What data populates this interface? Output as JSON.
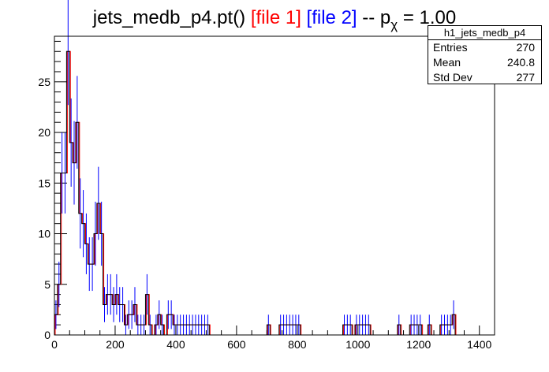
{
  "title": {
    "prefix": "jets_medb_p4.pt() ",
    "file1": "[file 1]",
    "file2": "[file 2]",
    "mid": " -- p",
    "sub": "χ",
    "suffix": " = 1.00"
  },
  "colors": {
    "file1": "#ff0000",
    "file2": "#0000ff",
    "hist": "#000000"
  },
  "stats": {
    "name": "h1_jets_medb_p4",
    "rows": [
      {
        "label": "Entries",
        "value": "270"
      },
      {
        "label": "Mean",
        "value": "240.8"
      },
      {
        "label": "Std Dev",
        "value": "277"
      }
    ]
  },
  "chart_data": {
    "type": "histogram",
    "xlim": [
      0,
      1450
    ],
    "ylim": [
      0,
      29.5
    ],
    "bin_width": 10,
    "x_ticks": [
      0,
      200,
      400,
      600,
      800,
      1000,
      1200,
      1400
    ],
    "y_ticks": [
      0,
      5,
      10,
      15,
      20,
      25
    ],
    "x_tick_labels": [
      "0",
      "200",
      "400",
      "600",
      "800",
      "1000",
      "1200",
      "1400"
    ],
    "y_tick_labels": [
      "0",
      "5",
      "10",
      "15",
      "20",
      "25"
    ],
    "series": [
      {
        "name": "file 1",
        "color": "#ff0000",
        "values": [
          2,
          5,
          16,
          16,
          28,
          19,
          17,
          21,
          12,
          11,
          9,
          7,
          7,
          10,
          13,
          10,
          3,
          4,
          4,
          3,
          4,
          3,
          3,
          1,
          2,
          2,
          3,
          1,
          1,
          1,
          4,
          1,
          0,
          1,
          2,
          1,
          0,
          2,
          2,
          1,
          1,
          1,
          1,
          1,
          1,
          1,
          1,
          1,
          1,
          1,
          1,
          0,
          0,
          0,
          0,
          0,
          0,
          0,
          0,
          0,
          0,
          0,
          0,
          0,
          0,
          0,
          0,
          0,
          0,
          0,
          1,
          0,
          0,
          0,
          1,
          1,
          1,
          1,
          1,
          1,
          1,
          0,
          0,
          0,
          0,
          0,
          0,
          0,
          0,
          0,
          0,
          0,
          0,
          0,
          0,
          1,
          1,
          1,
          0,
          1,
          1,
          1,
          1,
          1,
          0,
          0,
          0,
          0,
          0,
          0,
          0,
          0,
          0,
          1,
          0,
          0,
          0,
          1,
          1,
          1,
          1,
          0,
          0,
          1,
          0,
          0,
          0,
          1,
          1,
          1,
          1,
          2,
          0
        ]
      },
      {
        "name": "file 2",
        "color": "#0000ff",
        "values": [
          2,
          5,
          16,
          16,
          28,
          19,
          17,
          21,
          12,
          11,
          9,
          7,
          7,
          10,
          13,
          10,
          3,
          4,
          4,
          3,
          4,
          3,
          3,
          1,
          2,
          2,
          3,
          1,
          1,
          1,
          4,
          1,
          0,
          1,
          2,
          1,
          0,
          2,
          2,
          1,
          1,
          1,
          1,
          1,
          1,
          1,
          1,
          1,
          1,
          1,
          1,
          0,
          0,
          0,
          0,
          0,
          0,
          0,
          0,
          0,
          0,
          0,
          0,
          0,
          0,
          0,
          0,
          0,
          0,
          0,
          1,
          0,
          0,
          0,
          1,
          1,
          1,
          1,
          1,
          1,
          1,
          0,
          0,
          0,
          0,
          0,
          0,
          0,
          0,
          0,
          0,
          0,
          0,
          0,
          0,
          1,
          1,
          1,
          0,
          1,
          1,
          1,
          1,
          1,
          0,
          0,
          0,
          0,
          0,
          0,
          0,
          0,
          0,
          1,
          0,
          0,
          0,
          1,
          1,
          1,
          1,
          0,
          0,
          1,
          0,
          0,
          0,
          1,
          1,
          1,
          1,
          2,
          0
        ]
      }
    ]
  }
}
